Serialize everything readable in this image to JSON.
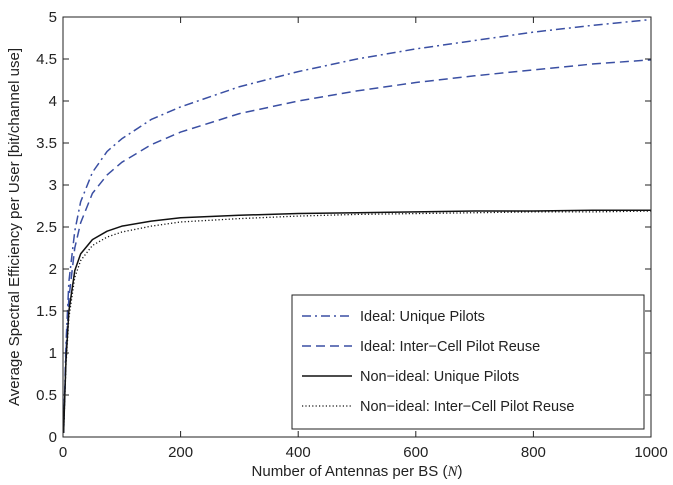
{
  "chart_data": {
    "type": "line",
    "xlabel": "Number of Antennas per BS",
    "xlabel_var": "N",
    "ylabel": "Average Spectral Efficiency per User [bit/channel use]",
    "xlim": [
      0,
      1000
    ],
    "ylim": [
      0,
      5
    ],
    "xticks": [
      0,
      200,
      400,
      600,
      800,
      1000
    ],
    "yticks": [
      0,
      0.5,
      1,
      1.5,
      2,
      2.5,
      3,
      3.5,
      4,
      4.5,
      5
    ],
    "ytick_labels": [
      "0",
      "0.5",
      "1",
      "1.5",
      "2",
      "2.5",
      "3",
      "3.5",
      "4",
      "4.5",
      "5"
    ],
    "grid": false,
    "legend_position": "bottom-right",
    "series": [
      {
        "name": "Ideal: Unique Pilots",
        "color": "#3a4fa3",
        "dash": "dashdot",
        "x": [
          1,
          5,
          10,
          20,
          30,
          50,
          75,
          100,
          150,
          200,
          300,
          400,
          500,
          600,
          700,
          800,
          900,
          1000
        ],
        "y": [
          0.05,
          1.1,
          1.85,
          2.45,
          2.8,
          3.15,
          3.4,
          3.55,
          3.78,
          3.93,
          4.17,
          4.35,
          4.5,
          4.62,
          4.72,
          4.82,
          4.9,
          4.97
        ]
      },
      {
        "name": "Ideal: Inter−Cell Pilot Reuse",
        "color": "#3a4fa3",
        "dash": "dashed",
        "x": [
          1,
          5,
          10,
          20,
          30,
          50,
          75,
          100,
          150,
          200,
          300,
          400,
          500,
          600,
          700,
          800,
          900,
          1000
        ],
        "y": [
          0.05,
          1.0,
          1.65,
          2.25,
          2.55,
          2.9,
          3.12,
          3.27,
          3.48,
          3.63,
          3.85,
          4.0,
          4.12,
          4.22,
          4.3,
          4.37,
          4.44,
          4.49
        ]
      },
      {
        "name": "Non−ideal: Unique Pilots",
        "color": "#111111",
        "dash": "solid",
        "x": [
          1,
          5,
          10,
          20,
          30,
          50,
          75,
          100,
          150,
          200,
          300,
          400,
          500,
          600,
          700,
          800,
          900,
          1000
        ],
        "y": [
          0.05,
          0.9,
          1.5,
          1.98,
          2.18,
          2.35,
          2.45,
          2.51,
          2.57,
          2.61,
          2.64,
          2.66,
          2.67,
          2.68,
          2.69,
          2.69,
          2.7,
          2.7
        ]
      },
      {
        "name": "Non−ideal: Inter−Cell Pilot Reuse",
        "color": "#111111",
        "dash": "dotted",
        "x": [
          1,
          5,
          10,
          20,
          30,
          50,
          75,
          100,
          150,
          200,
          300,
          400,
          500,
          600,
          700,
          800,
          900,
          1000
        ],
        "y": [
          0.05,
          0.85,
          1.42,
          1.9,
          2.1,
          2.28,
          2.38,
          2.44,
          2.51,
          2.56,
          2.6,
          2.63,
          2.65,
          2.66,
          2.67,
          2.68,
          2.68,
          2.69
        ]
      }
    ]
  }
}
